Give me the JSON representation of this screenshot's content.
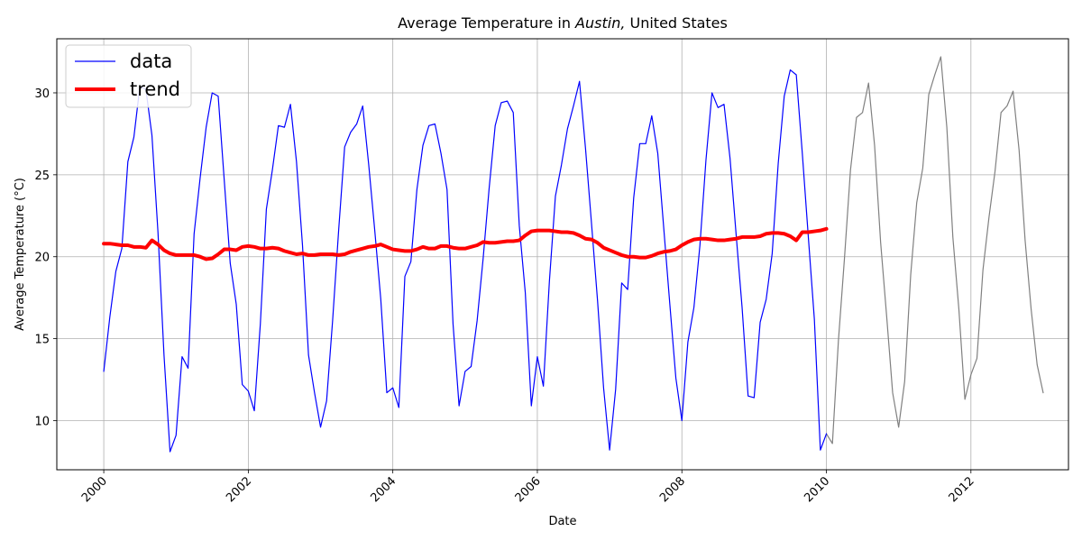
{
  "chart_data": {
    "type": "line",
    "title_prefix": "Average Temperature in ",
    "title_city": "Austin,",
    "title_suffix": " United States",
    "xlabel": "Date",
    "ylabel": "Average Temperature (°C)",
    "xlim": [
      1999.35,
      2013.35
    ],
    "ylim": [
      7.0,
      33.3
    ],
    "xticks": [
      2000,
      2002,
      2004,
      2006,
      2008,
      2010,
      2012
    ],
    "xtick_labels": [
      "2000",
      "2002",
      "2004",
      "2006",
      "2008",
      "2010",
      "2012"
    ],
    "yticks": [
      10,
      15,
      20,
      25,
      30
    ],
    "ytick_labels": [
      "10",
      "15",
      "20",
      "25",
      "30"
    ],
    "grid": true,
    "legend_position": "top-left",
    "series": [
      {
        "name": "data",
        "color": "#0000ff",
        "x_start": 2000.0,
        "x_step_months": 1,
        "values": [
          13.0,
          16.3,
          19.1,
          20.5,
          25.8,
          27.3,
          30.4,
          30.2,
          27.4,
          21.5,
          14.0,
          8.1,
          9.1,
          13.9,
          13.2,
          21.4,
          24.8,
          27.9,
          30.0,
          29.8,
          24.7,
          19.6,
          17.1,
          12.2,
          11.8,
          10.6,
          15.9,
          22.9,
          25.3,
          28.0,
          27.9,
          29.3,
          25.8,
          20.7,
          14.0,
          11.7,
          9.6,
          11.2,
          16.1,
          21.6,
          26.7,
          27.6,
          28.1,
          29.2,
          25.6,
          21.6,
          17.4,
          11.7,
          12.0,
          10.8,
          18.8,
          19.7,
          24.1,
          26.8,
          28.0,
          28.1,
          26.3,
          24.1,
          15.9,
          10.9,
          13.0,
          13.3,
          16.1,
          19.9,
          24.2,
          28.0,
          29.4,
          29.5,
          28.8,
          21.9,
          17.8,
          10.9,
          13.9,
          12.1,
          18.5,
          23.7,
          25.6,
          27.8,
          29.2,
          30.7,
          26.6,
          22.0,
          17.3,
          12.0,
          8.2,
          11.9,
          18.4,
          18.0,
          23.6,
          26.9,
          26.9,
          28.6,
          26.3,
          21.7,
          17.1,
          12.6,
          10.0,
          14.8,
          16.9,
          20.7,
          25.9,
          30.0,
          29.1,
          29.3,
          26.0,
          21.4,
          16.9,
          11.5,
          11.4,
          16.0,
          17.4,
          20.2,
          25.7,
          29.8,
          31.4,
          31.1,
          26.3,
          21.2,
          16.2,
          8.2,
          9.2
        ]
      },
      {
        "name": "",
        "color": "#808080",
        "x_start": 2010.0,
        "x_step_months": 1,
        "values": [
          9.2,
          8.6,
          14.9,
          19.9,
          25.3,
          28.5,
          28.8,
          30.6,
          26.8,
          20.9,
          16.4,
          11.7,
          9.6,
          12.4,
          18.9,
          23.3,
          25.4,
          29.9,
          31.1,
          32.2,
          27.9,
          21.2,
          16.8,
          11.3,
          12.8,
          13.8,
          19.2,
          22.4,
          25.2,
          28.8,
          29.2,
          30.1,
          26.5,
          21.0,
          16.8,
          13.4,
          11.7
        ]
      },
      {
        "name": "trend",
        "color": "#ff0000",
        "x_start": 2000.0,
        "x_step_months": 1,
        "values": [
          20.8,
          20.8,
          20.75,
          20.7,
          20.7,
          20.6,
          20.6,
          20.55,
          21.0,
          20.75,
          20.4,
          20.2,
          20.1,
          20.1,
          20.1,
          20.1,
          20.0,
          19.85,
          19.9,
          20.15,
          20.45,
          20.45,
          20.4,
          20.6,
          20.65,
          20.6,
          20.5,
          20.5,
          20.55,
          20.5,
          20.35,
          20.25,
          20.15,
          20.2,
          20.1,
          20.1,
          20.15,
          20.15,
          20.15,
          20.1,
          20.15,
          20.3,
          20.4,
          20.5,
          20.6,
          20.65,
          20.75,
          20.6,
          20.45,
          20.4,
          20.35,
          20.35,
          20.45,
          20.6,
          20.5,
          20.5,
          20.65,
          20.65,
          20.55,
          20.5,
          20.5,
          20.6,
          20.7,
          20.9,
          20.85,
          20.85,
          20.9,
          20.95,
          20.95,
          21.0,
          21.3,
          21.55,
          21.6,
          21.6,
          21.6,
          21.55,
          21.5,
          21.5,
          21.45,
          21.3,
          21.1,
          21.05,
          20.85,
          20.55,
          20.4,
          20.25,
          20.1,
          20.0,
          20.0,
          19.95,
          19.95,
          20.05,
          20.2,
          20.3,
          20.35,
          20.45,
          20.7,
          20.9,
          21.05,
          21.1,
          21.1,
          21.05,
          21.0,
          21.0,
          21.05,
          21.1,
          21.2,
          21.2,
          21.2,
          21.25,
          21.4,
          21.45,
          21.45,
          21.4,
          21.25,
          21.0,
          21.5,
          21.5,
          21.55,
          21.6,
          21.7
        ]
      }
    ]
  }
}
